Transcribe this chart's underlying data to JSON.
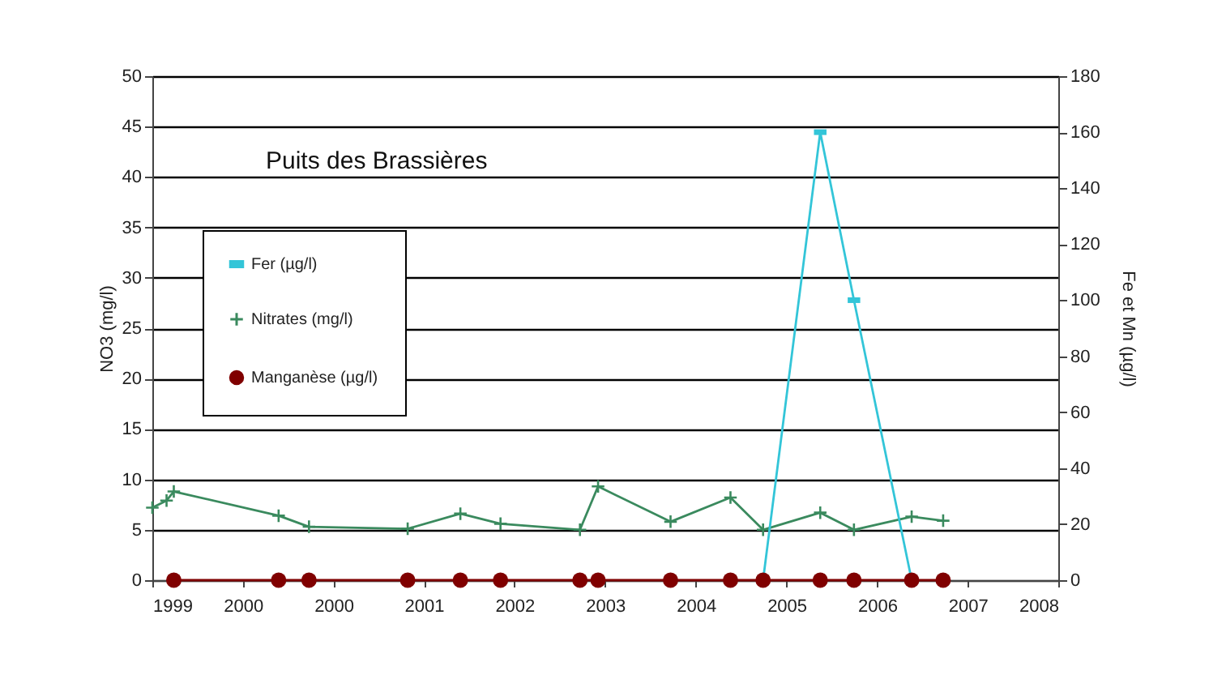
{
  "chart_data": {
    "type": "line",
    "title": "Puits des Brassières",
    "ylabel": "NO3 (mg/l)",
    "y2label": "Fe et Mn (µg/l)",
    "series": [
      {
        "name": "Fer (µg/l)",
        "color": "#33c5d8",
        "axis": "y2",
        "marker": "square",
        "x": [
          "2005-03-14",
          "2005-10-05",
          "2006-02-03",
          "2006-08-29"
        ],
        "values": [
          0,
          160,
          100,
          0
        ]
      },
      {
        "name": "Nitrates (mg/l)",
        "color": "#3a8a5e",
        "marker": "cross",
        "x": [
          "1999-03-15",
          "1999-05-05",
          "1999-05-31",
          "2000-06-10",
          "2000-09-27",
          "2001-09-16",
          "2002-03-24",
          "2002-08-15",
          "2003-05-27",
          "2003-07-31",
          "2004-04-16",
          "2004-11-17",
          "2005-03-14",
          "2005-10-05",
          "2006-02-03",
          "2006-08-29",
          "2006-12-20"
        ],
        "values": [
          7.2,
          7.9,
          8.8,
          6.4,
          5.3,
          5.1,
          6.6,
          5.6,
          5.0,
          9.3,
          5.8,
          8.2,
          5.0,
          6.7,
          5.0,
          6.3,
          5.9
        ]
      },
      {
        "name": "Manganèse (µg/l)",
        "color": "#800000",
        "axis": "y2",
        "marker": "circle",
        "x": [
          "1999-05-31",
          "2000-06-10",
          "2000-09-27",
          "2001-09-16",
          "2002-03-24",
          "2002-08-15",
          "2003-05-27",
          "2003-07-31",
          "2004-04-16",
          "2004-11-17",
          "2005-03-14",
          "2005-10-05",
          "2006-02-03",
          "2006-08-29",
          "2006-12-20"
        ],
        "values": [
          0,
          0,
          0,
          0,
          0,
          0,
          0,
          0,
          0,
          0,
          0,
          0,
          0,
          0,
          0
        ]
      }
    ],
    "xlim": [
      "1999-03-15",
      "2008-02-06"
    ],
    "xticks": [
      {
        "value": "1999-03-15",
        "label": "1999"
      },
      {
        "value": "2000-02-03",
        "label": "2000"
      },
      {
        "value": "2000-12-24",
        "label": "2000"
      },
      {
        "value": "2001-11-13",
        "label": "2001"
      },
      {
        "value": "2002-10-04",
        "label": "2002"
      },
      {
        "value": "2003-08-25",
        "label": "2003"
      },
      {
        "value": "2004-07-16",
        "label": "2004"
      },
      {
        "value": "2005-06-06",
        "label": "2005"
      },
      {
        "value": "2006-04-27",
        "label": "2006"
      },
      {
        "value": "2007-03-18",
        "label": "2007"
      },
      {
        "value": "2008-02-06",
        "label": "2008"
      }
    ],
    "ylim": [
      0,
      50
    ],
    "yticks": [
      0,
      5,
      10,
      15,
      20,
      25,
      30,
      35,
      40,
      45,
      50
    ],
    "y2lim": [
      0,
      180
    ],
    "y2ticks": [
      0,
      20,
      40,
      60,
      80,
      100,
      120,
      140,
      160,
      180
    ],
    "grid": "y",
    "legend": "top left",
    "line_style": "solid"
  }
}
